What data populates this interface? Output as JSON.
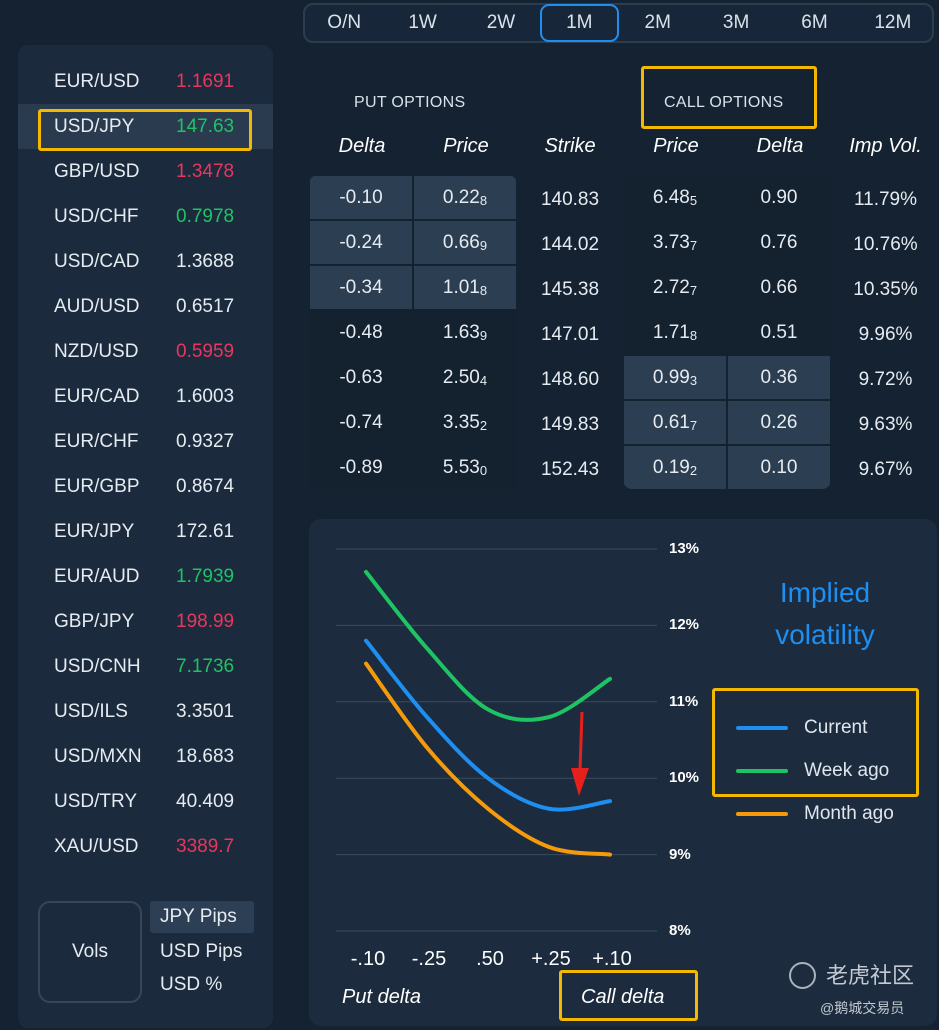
{
  "tenors": [
    "O/N",
    "1W",
    "2W",
    "1M",
    "2M",
    "3M",
    "6M",
    "12M"
  ],
  "active_tenor": "1M",
  "currencies": [
    {
      "pair": "EUR/USD",
      "rate": "1.1691",
      "color": "red"
    },
    {
      "pair": "USD/JPY",
      "rate": "147.63",
      "color": "green"
    },
    {
      "pair": "GBP/USD",
      "rate": "1.3478",
      "color": "red"
    },
    {
      "pair": "USD/CHF",
      "rate": "0.7978",
      "color": "green"
    },
    {
      "pair": "USD/CAD",
      "rate": "1.3688",
      "color": "white"
    },
    {
      "pair": "AUD/USD",
      "rate": "0.6517",
      "color": "white"
    },
    {
      "pair": "NZD/USD",
      "rate": "0.5959",
      "color": "red"
    },
    {
      "pair": "EUR/CAD",
      "rate": "1.6003",
      "color": "white"
    },
    {
      "pair": "EUR/CHF",
      "rate": "0.9327",
      "color": "white"
    },
    {
      "pair": "EUR/GBP",
      "rate": "0.8674",
      "color": "white"
    },
    {
      "pair": "EUR/JPY",
      "rate": "172.61",
      "color": "white"
    },
    {
      "pair": "EUR/AUD",
      "rate": "1.7939",
      "color": "green"
    },
    {
      "pair": "GBP/JPY",
      "rate": "198.99",
      "color": "red"
    },
    {
      "pair": "USD/CNH",
      "rate": "7.1736",
      "color": "green"
    },
    {
      "pair": "USD/ILS",
      "rate": "3.3501",
      "color": "white"
    },
    {
      "pair": "USD/MXN",
      "rate": "18.683",
      "color": "white"
    },
    {
      "pair": "USD/TRY",
      "rate": "40.409",
      "color": "white"
    },
    {
      "pair": "XAU/USD",
      "rate": "3389.7",
      "color": "red"
    }
  ],
  "selected_pair": "USD/JPY",
  "vols_button": "Vols",
  "unit_options": [
    "JPY Pips",
    "USD Pips",
    "USD %"
  ],
  "active_unit": "JPY Pips",
  "put_header": "PUT OPTIONS",
  "call_header": "CALL OPTIONS",
  "columns": [
    "Delta",
    "Price",
    "Strike",
    "Price",
    "Delta",
    "Imp Vol."
  ],
  "rows": [
    {
      "put_delta": "-0.10",
      "put_price": "0.22",
      "put_price_sub": "8",
      "strike": "140.83",
      "call_price": "6.48",
      "call_price_sub": "5",
      "call_delta": "0.90",
      "imp_vol": "11.79%"
    },
    {
      "put_delta": "-0.24",
      "put_price": "0.66",
      "put_price_sub": "9",
      "strike": "144.02",
      "call_price": "3.73",
      "call_price_sub": "7",
      "call_delta": "0.76",
      "imp_vol": "10.76%"
    },
    {
      "put_delta": "-0.34",
      "put_price": "1.01",
      "put_price_sub": "8",
      "strike": "145.38",
      "call_price": "2.72",
      "call_price_sub": "7",
      "call_delta": "0.66",
      "imp_vol": "10.35%"
    },
    {
      "put_delta": "-0.48",
      "put_price": "1.63",
      "put_price_sub": "9",
      "strike": "147.01",
      "call_price": "1.71",
      "call_price_sub": "8",
      "call_delta": "0.51",
      "imp_vol": "9.96%"
    },
    {
      "put_delta": "-0.63",
      "put_price": "2.50",
      "put_price_sub": "4",
      "strike": "148.60",
      "call_price": "0.99",
      "call_price_sub": "3",
      "call_delta": "0.36",
      "imp_vol": "9.72%"
    },
    {
      "put_delta": "-0.74",
      "put_price": "3.35",
      "put_price_sub": "2",
      "strike": "149.83",
      "call_price": "0.61",
      "call_price_sub": "7",
      "call_delta": "0.26",
      "imp_vol": "9.63%"
    },
    {
      "put_delta": "-0.89",
      "put_price": "5.53",
      "put_price_sub": "0",
      "strike": "152.43",
      "call_price": "0.19",
      "call_price_sub": "2",
      "call_delta": "0.10",
      "imp_vol": "9.67%"
    }
  ],
  "colors": {
    "red": "#e8365c",
    "green": "#1ec463",
    "blue_accent": "#1e8ff0",
    "highlight": "#f5b800",
    "current": "#1e8ff0",
    "week_ago": "#1ec463",
    "month_ago": "#f59a0b",
    "arrow": "#e8201c"
  },
  "chart_data": {
    "type": "line",
    "title": "Implied volatility",
    "x": [
      "-.10",
      "-.25",
      ".50",
      "+.25",
      "+.10"
    ],
    "xlabel_left": "Put delta",
    "xlabel_right": "Call delta",
    "y_ticks": [
      "13%",
      "12%",
      "11%",
      "10%",
      "9%",
      "8%"
    ],
    "ylim": [
      8,
      13
    ],
    "grid": true,
    "legend_position": "right",
    "series": [
      {
        "name": "Current",
        "values": [
          11.8,
          10.8,
          10.0,
          9.6,
          9.7
        ]
      },
      {
        "name": "Week ago",
        "values": [
          12.7,
          11.7,
          10.9,
          10.8,
          11.3
        ]
      },
      {
        "name": "Month ago",
        "values": [
          11.5,
          10.4,
          9.6,
          9.1,
          9.0
        ]
      }
    ]
  },
  "watermark": {
    "main": "老虎社区",
    "sub": "@鹅城交易员"
  }
}
